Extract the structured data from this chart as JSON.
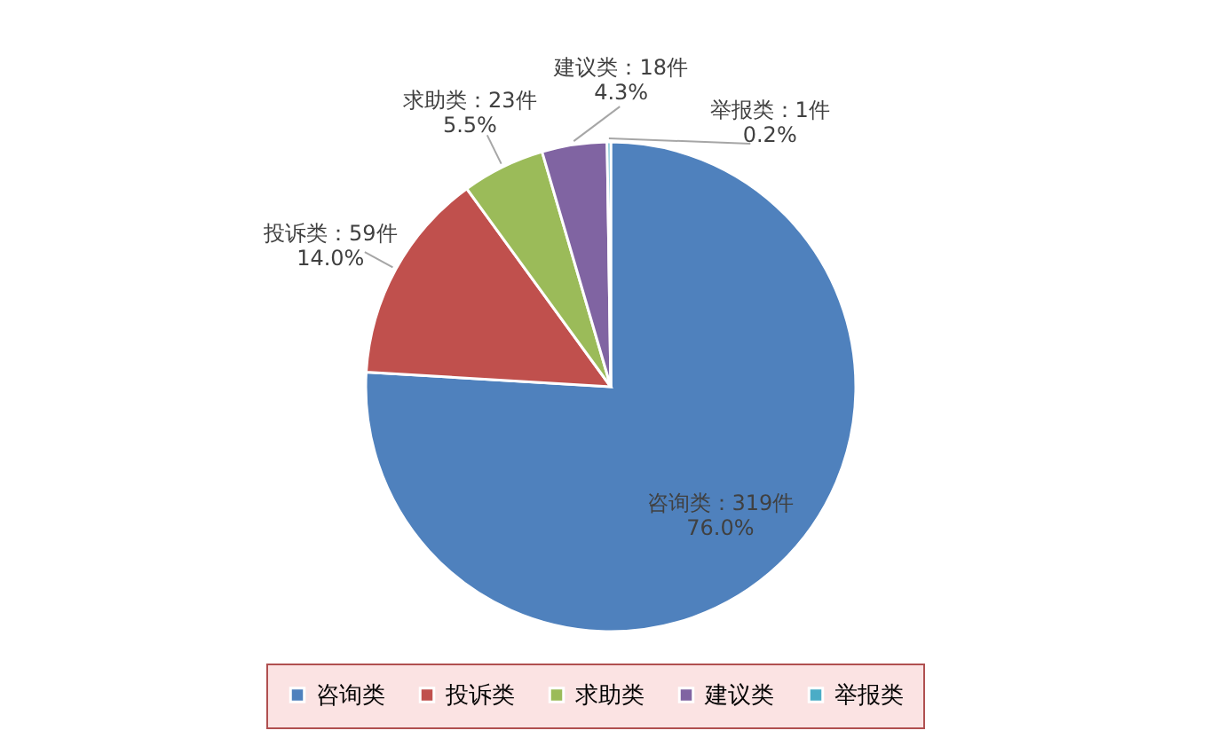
{
  "chart_data": {
    "type": "pie",
    "categories": [
      "咨询类",
      "投诉类",
      "求助类",
      "建议类",
      "举报类"
    ],
    "values": [
      319,
      59,
      23,
      18,
      1
    ],
    "colors": [
      "#4f81bd",
      "#c0504d",
      "#9bbb59",
      "#8064a2",
      "#4bacc6"
    ],
    "value_labels": [
      "咨询类：319件\n76.0%",
      "投诉类：59件\n14.0%",
      "求助类：23件\n5.5%",
      "建议类：18件\n4.3%",
      "举报类：1件\n0.2%"
    ],
    "legend": "bottom"
  }
}
